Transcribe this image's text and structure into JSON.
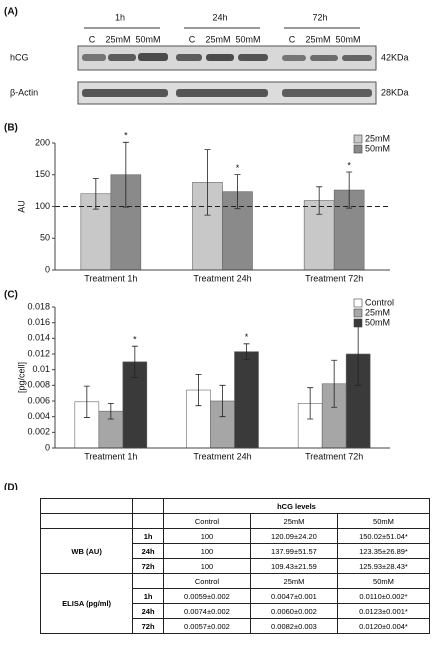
{
  "blot": {
    "panel": "(A)",
    "times": [
      "1h",
      "24h",
      "72h"
    ],
    "lanes": [
      "C",
      "25mM",
      "50mM",
      "C",
      "25mM",
      "50mM",
      "C",
      "25mM",
      "50mM"
    ],
    "rows": [
      {
        "name": "hCG",
        "size": "42KDa"
      },
      {
        "name": "β-Actin",
        "size": "28KDa"
      }
    ]
  },
  "chart_data": [
    {
      "type": "bar",
      "panel": "(B)",
      "y_label": "AU",
      "categories": [
        "Treatment 1h",
        "Treatment 24h",
        "Treatment 72h"
      ],
      "series": [
        {
          "name": "25mM",
          "color": "#c8c8c8",
          "values": [
            120.09,
            137.99,
            109.43
          ],
          "errors": [
            24.2,
            51.57,
            21.59
          ]
        },
        {
          "name": "50mM",
          "color": "#8a8a8a",
          "values": [
            150.02,
            123.35,
            125.93
          ],
          "errors": [
            51.04,
            26.89,
            28.43
          ],
          "annotations": [
            "*",
            "*",
            "*"
          ]
        }
      ],
      "ylim": [
        0,
        200
      ],
      "yticks": [
        0,
        50,
        100,
        150,
        200
      ],
      "reference_line": 100,
      "legend": "top-right"
    },
    {
      "type": "bar",
      "panel": "(C)",
      "y_label": "[pg/cell]",
      "categories": [
        "Treatment 1h",
        "Treatment 24h",
        "Treatment 72h"
      ],
      "series": [
        {
          "name": "Control",
          "color": "#ffffff",
          "values": [
            0.0059,
            0.0074,
            0.0057
          ],
          "errors": [
            0.002,
            0.002,
            0.002
          ]
        },
        {
          "name": "25mM",
          "color": "#a6a6a6",
          "values": [
            0.0047,
            0.006,
            0.0082
          ],
          "errors": [
            0.001,
            0.002,
            0.003
          ]
        },
        {
          "name": "50mM",
          "color": "#3a3a3a",
          "values": [
            0.011,
            0.0123,
            0.012
          ],
          "errors": [
            0.002,
            0.001,
            0.004
          ],
          "annotations": [
            "*",
            "*",
            "*"
          ]
        }
      ],
      "ylim": [
        0,
        0.018
      ],
      "yticks": [
        0,
        0.002,
        0.004,
        0.006,
        0.008,
        0.01,
        0.012,
        0.014,
        0.016,
        0.018
      ],
      "legend": "top-right"
    }
  ],
  "table": {
    "panel": "(D)",
    "title": "hCG levels",
    "sections": [
      {
        "label": "WB (AU)",
        "columns": [
          "Control",
          "25mM",
          "50mM"
        ],
        "rows": [
          {
            "time": "1h",
            "cells": [
              100,
              "120.09±24.20",
              "150.02±51.04*"
            ]
          },
          {
            "time": "24h",
            "cells": [
              100,
              "137.99±51.57",
              "123.35±26.89*"
            ]
          },
          {
            "time": "72h",
            "cells": [
              100,
              "109.43±21.59",
              "125.93±28.43*"
            ]
          }
        ]
      },
      {
        "label": "ELISA (pg/ml)",
        "columns": [
          "Control",
          "25mM",
          "50mM"
        ],
        "rows": [
          {
            "time": "1h",
            "cells": [
              "0.0059±0.002",
              "0.0047±0.001",
              "0.0110±0.002*"
            ]
          },
          {
            "time": "24h",
            "cells": [
              "0.0074±0.002",
              "0.0060±0.002",
              "0.0123±0.001*"
            ]
          },
          {
            "time": "72h",
            "cells": [
              "0.0057±0.002",
              "0.0082±0.003",
              "0.0120±0.004*"
            ]
          }
        ]
      }
    ]
  }
}
